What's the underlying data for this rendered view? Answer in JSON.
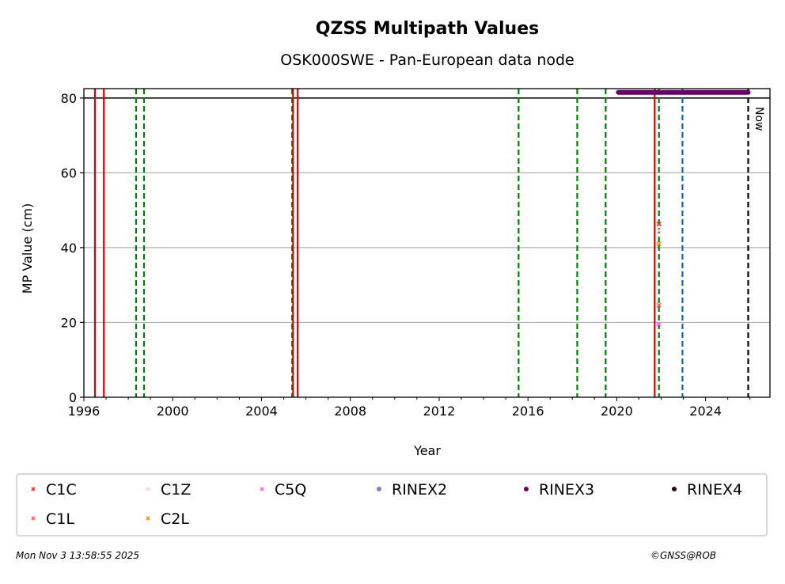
{
  "chart_data": {
    "type": "scatter",
    "title": "QZSS Multipath Values",
    "subtitle": "OSK000SWE - Pan-European data node",
    "xlabel": "Year",
    "ylabel": "MP Value (cm)",
    "xlim": [
      1996,
      2026.9
    ],
    "ylim": [
      0,
      82.5
    ],
    "xticks": [
      1996,
      2000,
      2004,
      2008,
      2012,
      2016,
      2020,
      2024
    ],
    "yticks": [
      0,
      20,
      40,
      60,
      80
    ],
    "grid": "y",
    "threshold_line": 80,
    "series": [
      {
        "name": "C1C",
        "color": "#ff2a1a",
        "marker": "x",
        "points": [
          [
            2021.9,
            46.3
          ]
        ]
      },
      {
        "name": "C1L",
        "color": "#ff5a5a",
        "marker": "x",
        "points": [
          [
            2021.9,
            24.6
          ]
        ]
      },
      {
        "name": "C1Z",
        "color": "#ffd0d0",
        "marker": "x",
        "points": [
          [
            2021.9,
            44.6
          ]
        ]
      },
      {
        "name": "C2L",
        "color": "#ff8c00",
        "marker": "x",
        "points": [
          [
            2021.9,
            41.0
          ]
        ]
      },
      {
        "name": "C5Q",
        "color": "#ff55ff",
        "marker": "x",
        "points": [
          [
            2021.9,
            19.5
          ]
        ]
      },
      {
        "name": "RINEX2",
        "color": "#8878c8",
        "marker": "o",
        "points": []
      },
      {
        "name": "RINEX3",
        "color": "#660066",
        "marker": "o",
        "range": [
          2020.07,
          2025.92
        ],
        "y": 81.5
      },
      {
        "name": "RINEX4",
        "color": "#220022",
        "marker": "o",
        "points": []
      }
    ],
    "vlines": [
      {
        "x": 1996.5,
        "color": "#dd0000",
        "style": "solid"
      },
      {
        "x": 1996.9,
        "color": "#dd0000",
        "style": "solid"
      },
      {
        "x": 1998.35,
        "color": "#008000",
        "style": "dashed"
      },
      {
        "x": 1998.71,
        "color": "#008000",
        "style": "dashed"
      },
      {
        "x": 2005.38,
        "color": "#008000",
        "style": "dashed"
      },
      {
        "x": 2005.42,
        "color": "#dd0000",
        "style": "solid"
      },
      {
        "x": 2005.63,
        "color": "#dd0000",
        "style": "solid"
      },
      {
        "x": 2015.58,
        "color": "#008000",
        "style": "dashed"
      },
      {
        "x": 2018.22,
        "color": "#008000",
        "style": "dashed"
      },
      {
        "x": 2019.5,
        "color": "#008000",
        "style": "dashed"
      },
      {
        "x": 2021.71,
        "color": "#dd0000",
        "style": "solid"
      },
      {
        "x": 2021.9,
        "color": "#008000",
        "style": "dashed"
      },
      {
        "x": 2022.96,
        "color": "#1060c0",
        "style": "dashed"
      },
      {
        "x": 2025.92,
        "color": "#000000",
        "style": "dashed"
      }
    ],
    "now_label": "Now",
    "legend_placement": "bottom"
  },
  "footer": {
    "timestamp": "Mon Nov  3 13:58:55 2025",
    "credit": "©GNSS@ROB"
  }
}
